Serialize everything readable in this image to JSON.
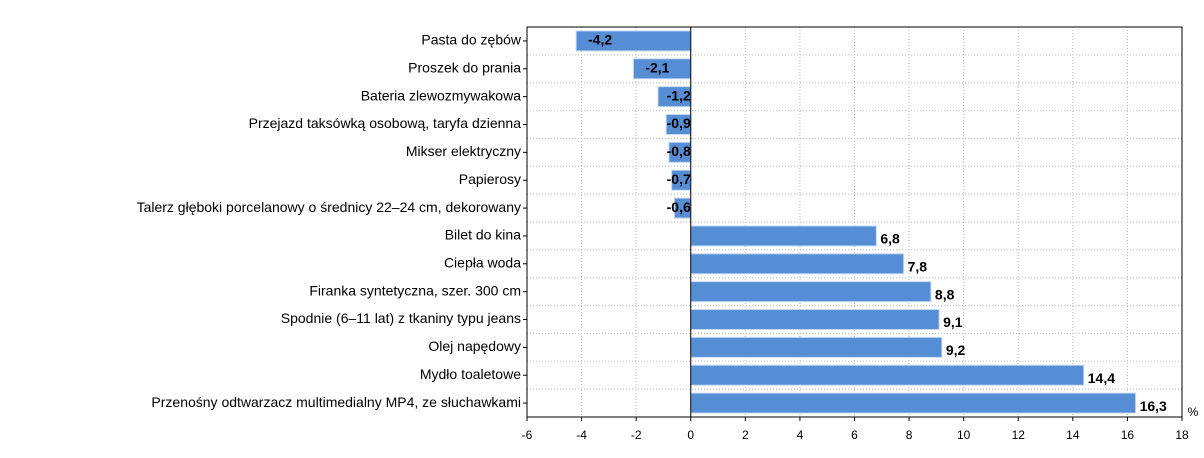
{
  "chart_data": {
    "type": "barh",
    "categories": [
      "Pasta do  zębów",
      "Proszek do prania",
      "Bateria zlewozmywakowa",
      "Przejazd taksówką osobową, taryfa dzienna",
      "Mikser elektryczny",
      "Papierosy",
      "Talerz głęboki porcelanowy o średnicy 22–24 cm, dekorowany",
      "Bilet do kina",
      "Ciepła woda",
      "Firanka syntetyczna, szer. 300 cm",
      "Spodnie (6–11 lat) z tkaniny typu jeans",
      "Olej napędowy",
      "Mydło toaletowe",
      "Przenośny odtwarzacz multimedialny MP4, ze słuchawkami"
    ],
    "values": [
      -4.2,
      -2.1,
      -1.2,
      -0.9,
      -0.8,
      -0.7,
      -0.6,
      6.8,
      7.8,
      8.8,
      9.1,
      9.2,
      14.4,
      16.3
    ],
    "value_labels": [
      "-4,2",
      "-2,1",
      "-1,2",
      "-0,9",
      "-0,8",
      "-0,7",
      "-0,6",
      "6,8",
      "7,8",
      "8,8",
      "9,1",
      "9,2",
      "14,4",
      "16,3"
    ],
    "color": "#558ed5",
    "x_label": "%",
    "xlim": [
      -6,
      18
    ],
    "xticks": [
      -6,
      -4,
      -2,
      0,
      2,
      4,
      6,
      8,
      10,
      12,
      14,
      16,
      18
    ],
    "grid": true
  }
}
